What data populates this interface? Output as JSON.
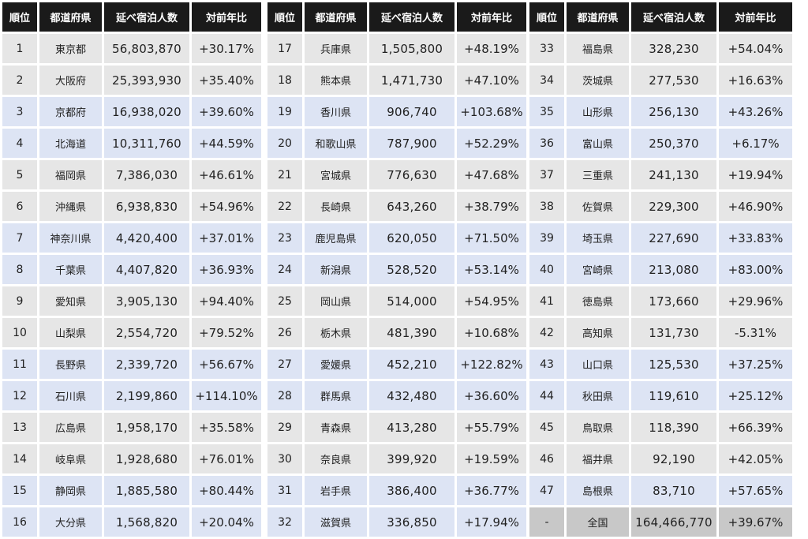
{
  "headers": [
    "順位",
    "都道府県",
    "延べ宿泊人数",
    "対前年比"
  ],
  "tables": [
    {
      "rows": [
        {
          "rank": "1",
          "pref": "東京都",
          "stays": "56,803,870",
          "yoy": "+30.17%"
        },
        {
          "rank": "2",
          "pref": "大阪府",
          "stays": "25,393,930",
          "yoy": "+35.40%"
        },
        {
          "rank": "3",
          "pref": "京都府",
          "stays": "16,938,020",
          "yoy": "+39.60%"
        },
        {
          "rank": "4",
          "pref": "北海道",
          "stays": "10,311,760",
          "yoy": "+44.59%"
        },
        {
          "rank": "5",
          "pref": "福岡県",
          "stays": "7,386,030",
          "yoy": "+46.61%"
        },
        {
          "rank": "6",
          "pref": "沖縄県",
          "stays": "6,938,830",
          "yoy": "+54.96%"
        },
        {
          "rank": "7",
          "pref": "神奈川県",
          "stays": "4,420,400",
          "yoy": "+37.01%"
        },
        {
          "rank": "8",
          "pref": "千葉県",
          "stays": "4,407,820",
          "yoy": "+36.93%"
        },
        {
          "rank": "9",
          "pref": "愛知県",
          "stays": "3,905,130",
          "yoy": "+94.40%"
        },
        {
          "rank": "10",
          "pref": "山梨県",
          "stays": "2,554,720",
          "yoy": "+79.52%"
        },
        {
          "rank": "11",
          "pref": "長野県",
          "stays": "2,339,720",
          "yoy": "+56.67%"
        },
        {
          "rank": "12",
          "pref": "石川県",
          "stays": "2,199,860",
          "yoy": "+114.10%"
        },
        {
          "rank": "13",
          "pref": "広島県",
          "stays": "1,958,170",
          "yoy": "+35.58%"
        },
        {
          "rank": "14",
          "pref": "岐阜県",
          "stays": "1,928,680",
          "yoy": "+76.01%"
        },
        {
          "rank": "15",
          "pref": "静岡県",
          "stays": "1,885,580",
          "yoy": "+80.44%"
        },
        {
          "rank": "16",
          "pref": "大分県",
          "stays": "1,568,820",
          "yoy": "+20.04%"
        }
      ]
    },
    {
      "rows": [
        {
          "rank": "17",
          "pref": "兵庫県",
          "stays": "1,505,800",
          "yoy": "+48.19%"
        },
        {
          "rank": "18",
          "pref": "熊本県",
          "stays": "1,471,730",
          "yoy": "+47.10%"
        },
        {
          "rank": "19",
          "pref": "香川県",
          "stays": "906,740",
          "yoy": "+103.68%"
        },
        {
          "rank": "20",
          "pref": "和歌山県",
          "stays": "787,900",
          "yoy": "+52.29%"
        },
        {
          "rank": "21",
          "pref": "宮城県",
          "stays": "776,630",
          "yoy": "+47.68%"
        },
        {
          "rank": "22",
          "pref": "長崎県",
          "stays": "643,260",
          "yoy": "+38.79%"
        },
        {
          "rank": "23",
          "pref": "鹿児島県",
          "stays": "620,050",
          "yoy": "+71.50%"
        },
        {
          "rank": "24",
          "pref": "新潟県",
          "stays": "528,520",
          "yoy": "+53.14%"
        },
        {
          "rank": "25",
          "pref": "岡山県",
          "stays": "514,000",
          "yoy": "+54.95%"
        },
        {
          "rank": "26",
          "pref": "栃木県",
          "stays": "481,390",
          "yoy": "+10.68%"
        },
        {
          "rank": "27",
          "pref": "愛媛県",
          "stays": "452,210",
          "yoy": "+122.82%"
        },
        {
          "rank": "28",
          "pref": "群馬県",
          "stays": "432,480",
          "yoy": "+36.60%"
        },
        {
          "rank": "29",
          "pref": "青森県",
          "stays": "413,280",
          "yoy": "+55.79%"
        },
        {
          "rank": "30",
          "pref": "奈良県",
          "stays": "399,920",
          "yoy": "+19.59%"
        },
        {
          "rank": "31",
          "pref": "岩手県",
          "stays": "386,400",
          "yoy": "+36.77%"
        },
        {
          "rank": "32",
          "pref": "滋賀県",
          "stays": "336,850",
          "yoy": "+17.94%"
        }
      ]
    },
    {
      "rows": [
        {
          "rank": "33",
          "pref": "福島県",
          "stays": "328,230",
          "yoy": "+54.04%"
        },
        {
          "rank": "34",
          "pref": "茨城県",
          "stays": "277,530",
          "yoy": "+16.63%"
        },
        {
          "rank": "35",
          "pref": "山形県",
          "stays": "256,130",
          "yoy": "+43.26%"
        },
        {
          "rank": "36",
          "pref": "富山県",
          "stays": "250,370",
          "yoy": "+6.17%"
        },
        {
          "rank": "37",
          "pref": "三重県",
          "stays": "241,130",
          "yoy": "+19.94%"
        },
        {
          "rank": "38",
          "pref": "佐賀県",
          "stays": "229,300",
          "yoy": "+46.90%"
        },
        {
          "rank": "39",
          "pref": "埼玉県",
          "stays": "227,690",
          "yoy": "+33.83%"
        },
        {
          "rank": "40",
          "pref": "宮崎県",
          "stays": "213,080",
          "yoy": "+83.00%"
        },
        {
          "rank": "41",
          "pref": "徳島県",
          "stays": "173,660",
          "yoy": "+29.96%"
        },
        {
          "rank": "42",
          "pref": "高知県",
          "stays": "131,730",
          "yoy": "-5.31%"
        },
        {
          "rank": "43",
          "pref": "山口県",
          "stays": "125,530",
          "yoy": "+37.25%"
        },
        {
          "rank": "44",
          "pref": "秋田県",
          "stays": "119,610",
          "yoy": "+25.12%"
        },
        {
          "rank": "45",
          "pref": "鳥取県",
          "stays": "118,390",
          "yoy": "+66.39%"
        },
        {
          "rank": "46",
          "pref": "福井県",
          "stays": "92,190",
          "yoy": "+42.05%"
        },
        {
          "rank": "47",
          "pref": "島根県",
          "stays": "83,710",
          "yoy": "+57.65%"
        },
        {
          "rank": "-",
          "pref": "全国",
          "stays": "164,466,770",
          "yoy": "+39.67%",
          "total": true
        }
      ]
    }
  ]
}
